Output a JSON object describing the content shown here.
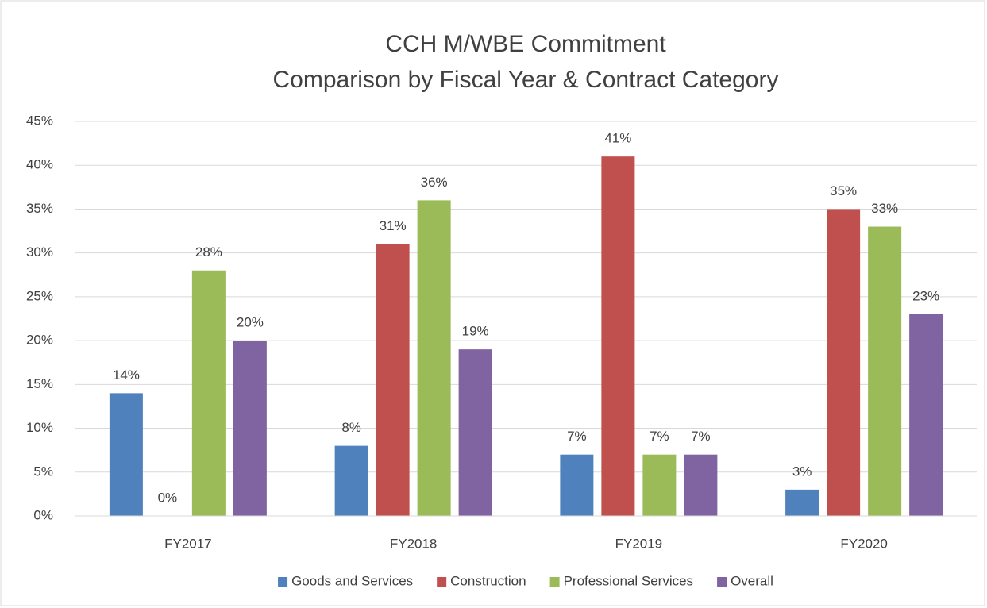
{
  "chart_data": {
    "type": "bar",
    "title": "CCH M/WBE Commitment",
    "subtitle": "Comparison by Fiscal Year & Contract Category",
    "categories": [
      "FY2017",
      "FY2018",
      "FY2019",
      "FY2020"
    ],
    "series": [
      {
        "name": "Goods and Services",
        "color": "#4f81bd",
        "values": [
          14,
          8,
          7,
          3
        ],
        "value_labels": [
          "14%",
          "8%",
          "7%",
          "3%"
        ]
      },
      {
        "name": "Construction",
        "color": "#c0504d",
        "values": [
          0,
          31,
          41,
          35
        ],
        "value_labels": [
          "0%",
          "31%",
          "41%",
          "35%"
        ]
      },
      {
        "name": "Professional Services",
        "color": "#9bbb59",
        "values": [
          28,
          36,
          7,
          33
        ],
        "value_labels": [
          "28%",
          "36%",
          "7%",
          "33%"
        ]
      },
      {
        "name": "Overall",
        "color": "#8064a2",
        "values": [
          20,
          19,
          7,
          23
        ],
        "value_labels": [
          "20%",
          "19%",
          "7%",
          "23%"
        ]
      }
    ],
    "ylim": [
      0,
      45
    ],
    "yticks": [
      {
        "value": 0,
        "label": "0%"
      },
      {
        "value": 5,
        "label": "5%"
      },
      {
        "value": 10,
        "label": "10%"
      },
      {
        "value": 15,
        "label": "15%"
      },
      {
        "value": 20,
        "label": "20%"
      },
      {
        "value": 25,
        "label": "25%"
      },
      {
        "value": 30,
        "label": "30%"
      },
      {
        "value": 35,
        "label": "35%"
      },
      {
        "value": 40,
        "label": "40%"
      },
      {
        "value": 45,
        "label": "45%"
      }
    ],
    "grid": true,
    "legend": "bottom"
  }
}
